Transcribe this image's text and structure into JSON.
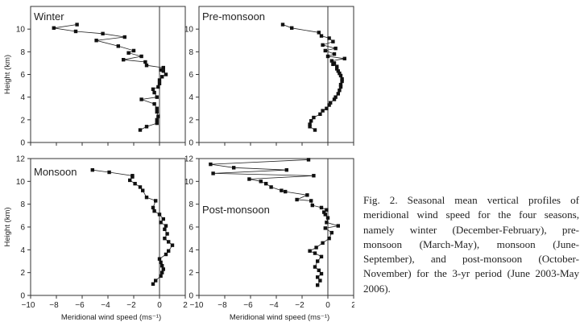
{
  "caption": "Fig. 2. Seasonal mean vertical profiles of meridional wind speed for the four seasons, namely winter (December-February), pre-monsoon (March-May), monsoon (June- September), and post-monsoon (October-November) for the 3-yr period (June 2003-May 2006).",
  "chart_data": [
    {
      "type": "line",
      "title": "Winter",
      "xlabel": "",
      "ylabel": "Height (km)",
      "xlim": [
        -10,
        2
      ],
      "ylim": [
        0,
        12
      ],
      "xticks": [],
      "yticks": [
        0,
        2,
        4,
        6,
        8,
        10
      ],
      "series": [
        {
          "name": "Winter",
          "x": [
            -1.5,
            -1.0,
            -0.2,
            -0.2,
            -0.1,
            -0.2,
            -0.2,
            -0.4,
            -1.4,
            -0.2,
            -0.4,
            -0.5,
            -0.1,
            0.0,
            0.0,
            0.2,
            0.5,
            0.3,
            0.1,
            0.3,
            -1.0,
            -1.1,
            -2.8,
            -1.4,
            -2.4,
            -2.0,
            -3.2,
            -4.9,
            -2.7,
            -4.4,
            -6.5,
            -8.2,
            -6.4
          ],
          "y": [
            1.1,
            1.4,
            1.7,
            2.0,
            2.3,
            2.7,
            3.0,
            3.4,
            3.8,
            4.0,
            4.4,
            4.7,
            4.9,
            5.2,
            5.5,
            5.8,
            6.0,
            6.3,
            6.4,
            6.6,
            6.8,
            7.1,
            7.3,
            7.6,
            7.9,
            8.1,
            8.5,
            9.0,
            9.3,
            9.6,
            9.8,
            10.1,
            10.4
          ]
        }
      ]
    },
    {
      "type": "line",
      "title": "Pre-monsoon",
      "xlabel": "",
      "ylabel": "",
      "xlim": [
        -10,
        2
      ],
      "ylim": [
        0,
        12
      ],
      "xticks": [],
      "yticks": [
        0,
        2,
        4,
        6,
        8,
        10
      ],
      "series": [
        {
          "name": "Pre-monsoon",
          "x": [
            -1.0,
            -1.4,
            -1.4,
            -1.3,
            -1.1,
            -0.6,
            -0.4,
            -0.1,
            0.1,
            0.2,
            0.5,
            0.6,
            0.8,
            0.9,
            1.0,
            1.0,
            1.1,
            1.1,
            1.0,
            0.9,
            0.8,
            0.7,
            0.7,
            0.4,
            0.5,
            0.3,
            1.3,
            0.0,
            0.5,
            -0.2,
            0.6,
            -0.4,
            0.4,
            0.1,
            -0.5,
            -0.7,
            -2.8,
            -3.5
          ],
          "y": [
            1.1,
            1.4,
            1.6,
            1.9,
            2.2,
            2.5,
            2.8,
            3.0,
            3.3,
            3.5,
            3.8,
            4.0,
            4.3,
            4.6,
            4.9,
            5.1,
            5.4,
            5.6,
            5.9,
            6.1,
            6.3,
            6.5,
            6.7,
            6.9,
            7.0,
            7.2,
            7.4,
            7.6,
            7.8,
            8.1,
            8.3,
            8.6,
            8.9,
            9.2,
            9.4,
            9.7,
            10.1,
            10.4
          ]
        }
      ]
    },
    {
      "type": "line",
      "title": "Monsoon",
      "xlabel": "Meridional wind speed (ms⁻¹)",
      "ylabel": "Height (km)",
      "xlim": [
        -10,
        2
      ],
      "ylim": [
        0,
        12
      ],
      "xticks": [
        -10,
        -8,
        -6,
        -4,
        -2,
        0,
        2
      ],
      "yticks": [
        0,
        2,
        4,
        6,
        8,
        10,
        12
      ],
      "series": [
        {
          "name": "Monsoon",
          "x": [
            -0.5,
            -0.3,
            0.1,
            0.2,
            0.3,
            0.2,
            0.1,
            0.0,
            0.5,
            0.7,
            1.0,
            0.7,
            0.4,
            0.6,
            0.4,
            0.5,
            0.1,
            0.3,
            0.0,
            -0.4,
            -0.5,
            -0.3,
            -1.0,
            -1.3,
            -1.5,
            -1.9,
            -2.3,
            -2.1,
            -2.1,
            -3.9,
            -5.2
          ],
          "y": [
            1.0,
            1.3,
            1.7,
            2.0,
            2.3,
            2.6,
            2.9,
            3.2,
            3.6,
            3.9,
            4.4,
            4.7,
            5.0,
            5.4,
            5.8,
            6.1,
            6.4,
            6.7,
            7.1,
            7.4,
            7.7,
            8.3,
            8.6,
            9.2,
            9.5,
            9.8,
            10.1,
            10.4,
            10.5,
            10.8,
            11.0
          ]
        }
      ]
    },
    {
      "type": "line",
      "title": "Post-monsoon",
      "xlabel": "Meridional wind speed (ms⁻¹)",
      "ylabel": "",
      "xlim": [
        -10,
        2
      ],
      "ylim": [
        0,
        12
      ],
      "xticks": [
        -10,
        -8,
        -6,
        -4,
        -2,
        0,
        2
      ],
      "yticks": [
        0,
        2,
        4,
        6,
        8,
        10,
        12
      ],
      "series": [
        {
          "name": "Post-monsoon",
          "x": [
            -0.8,
            -0.6,
            -0.8,
            -0.5,
            -0.7,
            -1.0,
            -0.8,
            -0.5,
            -1.0,
            -1.4,
            -0.9,
            -0.4,
            0.1,
            0.3,
            -0.2,
            0.8,
            -0.1,
            0.0,
            -0.2,
            -0.3,
            -0.1,
            -0.5,
            -1.2,
            -1.3,
            -2.4,
            -1.6,
            -3.3,
            -3.6,
            -4.4,
            -4.8,
            -5.2,
            -6.1,
            -1.1,
            -8.9,
            -3.2,
            -7.3,
            -9.1,
            -1.5
          ],
          "y": [
            0.9,
            1.3,
            1.6,
            1.9,
            2.2,
            2.5,
            3.0,
            3.4,
            3.7,
            3.9,
            4.2,
            4.6,
            5.0,
            5.5,
            5.9,
            6.1,
            6.4,
            6.8,
            7.1,
            7.3,
            7.5,
            7.7,
            7.9,
            8.3,
            8.4,
            8.8,
            9.1,
            9.2,
            9.5,
            9.8,
            10.0,
            10.2,
            10.5,
            10.7,
            11.0,
            11.2,
            11.5,
            11.9
          ]
        }
      ]
    }
  ]
}
